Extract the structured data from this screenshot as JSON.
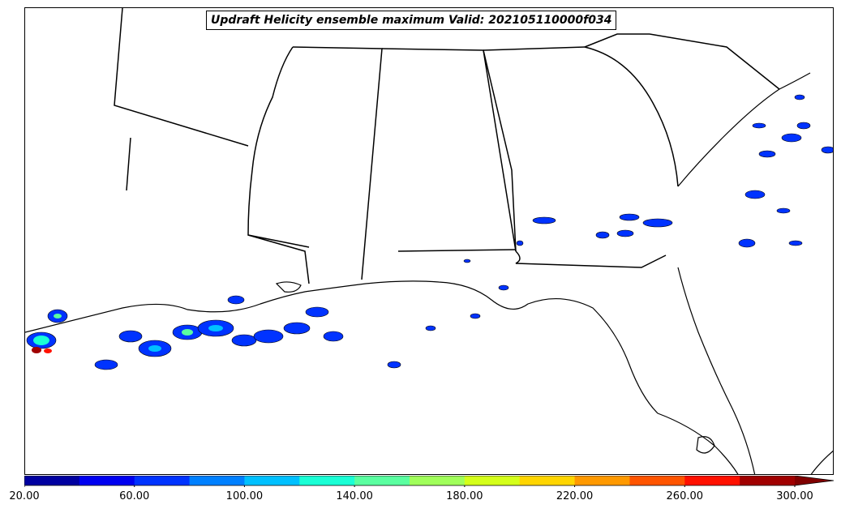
{
  "title": "Updraft Helicity ensemble maximum Valid: 202105110000f034",
  "colorbar": {
    "min": 20,
    "max": 300,
    "extend": "max",
    "bins": [
      {
        "from": 20,
        "to": 40,
        "color": "#0000a0"
      },
      {
        "from": 40,
        "to": 60,
        "color": "#0000f0"
      },
      {
        "from": 60,
        "to": 80,
        "color": "#0033ff"
      },
      {
        "from": 80,
        "to": 100,
        "color": "#0080ff"
      },
      {
        "from": 100,
        "to": 120,
        "color": "#00c0ff"
      },
      {
        "from": 120,
        "to": 140,
        "color": "#1affd5"
      },
      {
        "from": 140,
        "to": 160,
        "color": "#5affa0"
      },
      {
        "from": 160,
        "to": 180,
        "color": "#a0ff5a"
      },
      {
        "from": 180,
        "to": 200,
        "color": "#d4ff1a"
      },
      {
        "from": 200,
        "to": 220,
        "color": "#ffd500"
      },
      {
        "from": 220,
        "to": 240,
        "color": "#ff9900"
      },
      {
        "from": 240,
        "to": 260,
        "color": "#ff5500"
      },
      {
        "from": 260,
        "to": 280,
        "color": "#ff1100"
      },
      {
        "from": 280,
        "to": 300,
        "color": "#a00000"
      }
    ],
    "extend_color": "#800000",
    "ticks": [
      {
        "value": 20,
        "label": "20.00"
      },
      {
        "value": 60,
        "label": "60.00"
      },
      {
        "value": 100,
        "label": "100.00"
      },
      {
        "value": 140,
        "label": "140.00"
      },
      {
        "value": 180,
        "label": "180.00"
      },
      {
        "value": 220,
        "label": "220.00"
      },
      {
        "value": 260,
        "label": "260.00"
      },
      {
        "value": 300,
        "label": "300.00"
      }
    ]
  },
  "colors": {
    "coastline": "#000000",
    "state_borders": "#000000",
    "land": "#ffffff",
    "water": "#ffffff"
  }
}
